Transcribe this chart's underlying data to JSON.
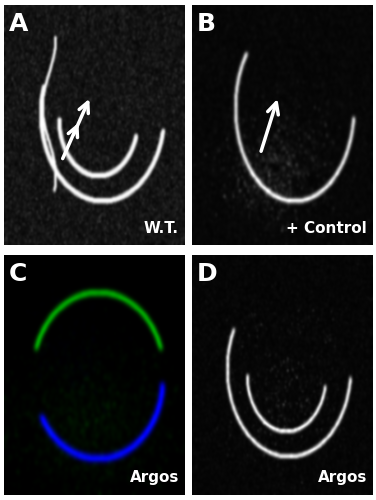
{
  "figure_width": 3.76,
  "figure_height": 5.0,
  "dpi": 100,
  "background_color": "#ffffff",
  "panel_bg": "#000000",
  "panel_labels": [
    "A",
    "B",
    "C",
    "D"
  ],
  "label_color": "#ffffff",
  "label_fontsize": 18,
  "label_fontweight": "bold",
  "panel_A_label": "W.T.",
  "panel_B_label": "+ Control",
  "panel_C_label": "Argos",
  "panel_D_label": "Argos",
  "sublabel_fontsize": 11,
  "grid_color": "#cccccc",
  "grid_linewidth": 1.5,
  "arrow_color": "#ffffff",
  "arrow_linewidth": 2.5
}
